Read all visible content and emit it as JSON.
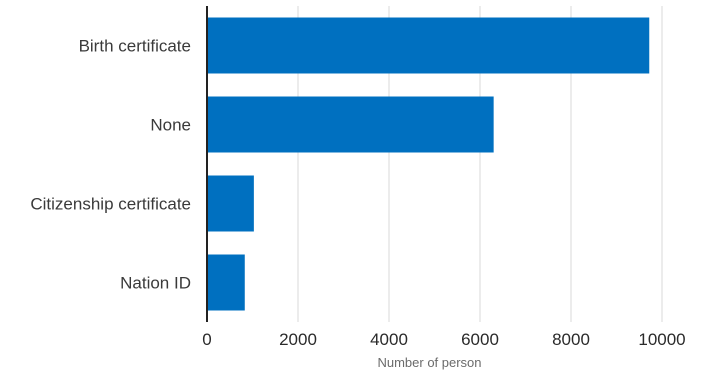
{
  "chart_data": {
    "type": "bar",
    "orientation": "horizontal",
    "categories": [
      "Birth certificate",
      "None",
      "Citizenship certificate",
      "Nation ID"
    ],
    "values": [
      9720,
      6300,
      1030,
      830
    ],
    "xlabel": "Number of person",
    "ylabel": "",
    "xlim": [
      0,
      10000
    ],
    "xticks": [
      "0",
      "2000",
      "4000",
      "6000",
      "8000",
      "10000"
    ],
    "grid": "vertical",
    "bar_color": "#0070c0",
    "grid_color": "#d9d9d9",
    "axis_color": "#222222"
  }
}
